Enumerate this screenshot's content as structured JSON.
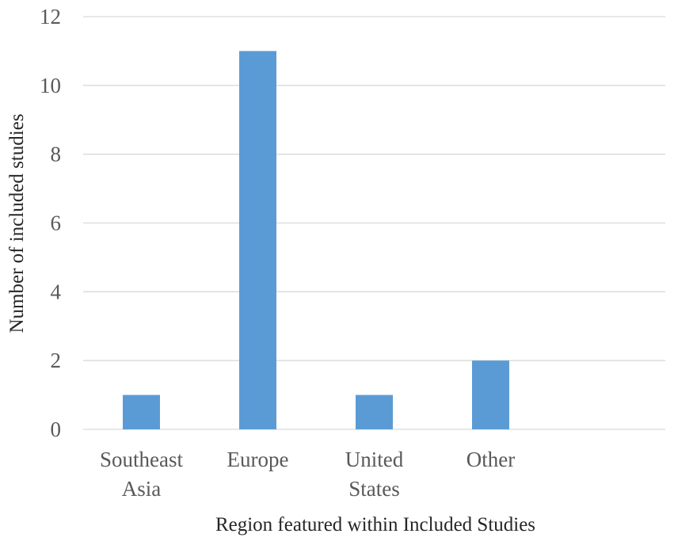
{
  "chart_data": {
    "type": "bar",
    "categories": [
      [
        "Southeast",
        "Asia"
      ],
      [
        "Europe"
      ],
      [
        "United",
        "States"
      ],
      [
        "Other"
      ],
      [
        ""
      ]
    ],
    "values": [
      1,
      11,
      1,
      2,
      null
    ],
    "xlabel": "Region featured within Included Studies",
    "ylabel": "Number of included studies",
    "ylim": [
      0,
      12
    ],
    "yticks": [
      0,
      2,
      4,
      6,
      8,
      10,
      12
    ],
    "grid": true,
    "bar_color": "#5b9bd5",
    "grid_color": "#d9d9d9"
  }
}
